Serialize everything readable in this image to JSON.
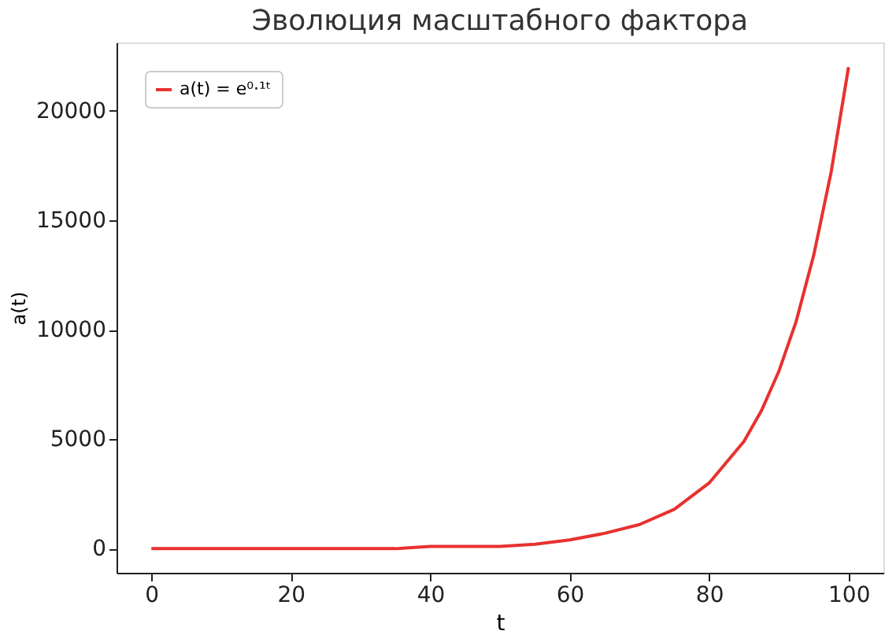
{
  "chart_data": {
    "type": "line",
    "title": "Эволюция масштабного фактора",
    "xlabel": "t",
    "ylabel": "a(t)",
    "x": [
      0,
      5,
      10,
      15,
      20,
      25,
      30,
      35,
      40,
      45,
      50,
      55,
      60,
      65,
      70,
      75,
      80,
      85,
      87.5,
      90,
      92.5,
      95,
      97.5,
      100
    ],
    "series": [
      {
        "name": "a(t) = e⁰·¹ᵗ",
        "color": "#e8312f",
        "values": [
          0,
          0,
          0,
          0,
          0,
          0,
          0,
          0,
          100,
          100,
          100,
          200,
          400,
          700,
          1100,
          1800,
          3000,
          4900,
          6300,
          8100,
          10400,
          13400,
          17200,
          22000
        ]
      }
    ],
    "xlim": [
      -5,
      105
    ],
    "xticks": [
      0,
      20,
      40,
      60,
      80,
      100
    ],
    "ylim": [
      -1101,
      23127
    ],
    "yticks": [
      0,
      5000,
      10000,
      15000,
      20000
    ],
    "grid": false,
    "legend": "top left",
    "marker": "none",
    "line_style": "solid"
  }
}
